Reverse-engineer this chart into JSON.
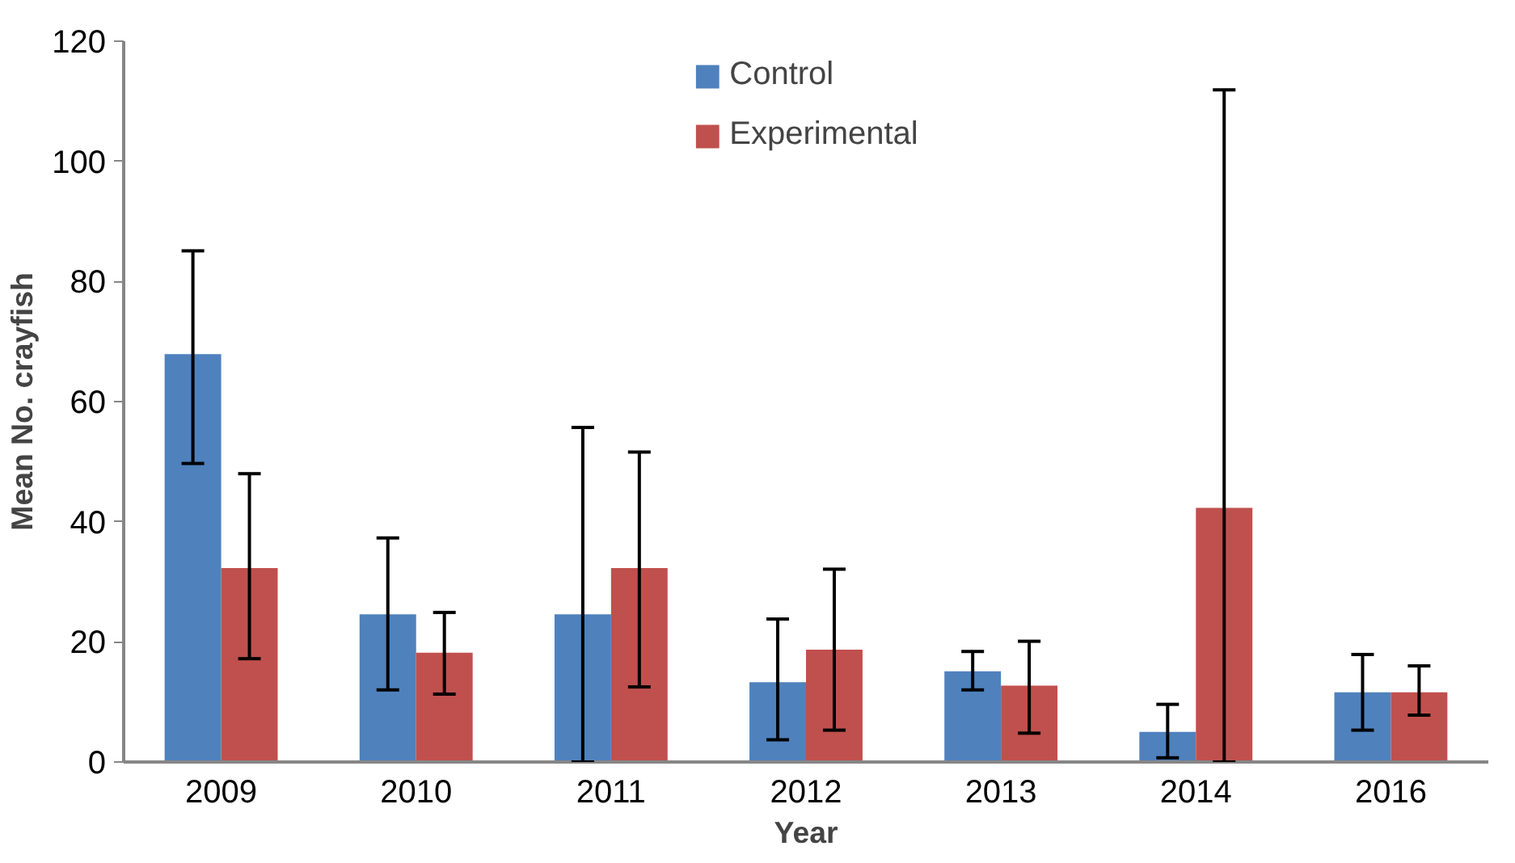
{
  "chart_data": {
    "type": "bar",
    "xlabel": "Year",
    "ylabel": "Mean No. crayfish",
    "categories": [
      "2009",
      "2010",
      "2011",
      "2012",
      "2013",
      "2014",
      "2016"
    ],
    "series": [
      {
        "name": "Control",
        "color": "#4f81bd",
        "values": [
          67.9,
          24.6,
          24.6,
          13.3,
          15.1,
          5.0,
          11.6
        ],
        "errors": [
          [
            49.7,
            85.1
          ],
          [
            12.0,
            37.3
          ],
          [
            0,
            55.7
          ],
          [
            3.7,
            23.8
          ],
          [
            12.0,
            18.4
          ],
          [
            0.7,
            9.6
          ],
          [
            5.3,
            17.9
          ]
        ]
      },
      {
        "name": "Experimental",
        "color": "#c0504d",
        "values": [
          32.3,
          18.2,
          32.3,
          18.7,
          12.7,
          42.3,
          11.6
        ],
        "errors": [
          [
            17.2,
            48.0
          ],
          [
            11.3,
            24.9
          ],
          [
            12.5,
            51.6
          ],
          [
            5.3,
            32.1
          ],
          [
            4.8,
            20.1
          ],
          [
            0,
            111.9
          ],
          [
            7.8,
            16.0
          ]
        ]
      }
    ],
    "ylim": [
      0,
      120
    ],
    "yticks": [
      0,
      20,
      40,
      60,
      80,
      100,
      120
    ],
    "grid": false,
    "legend": "top"
  }
}
